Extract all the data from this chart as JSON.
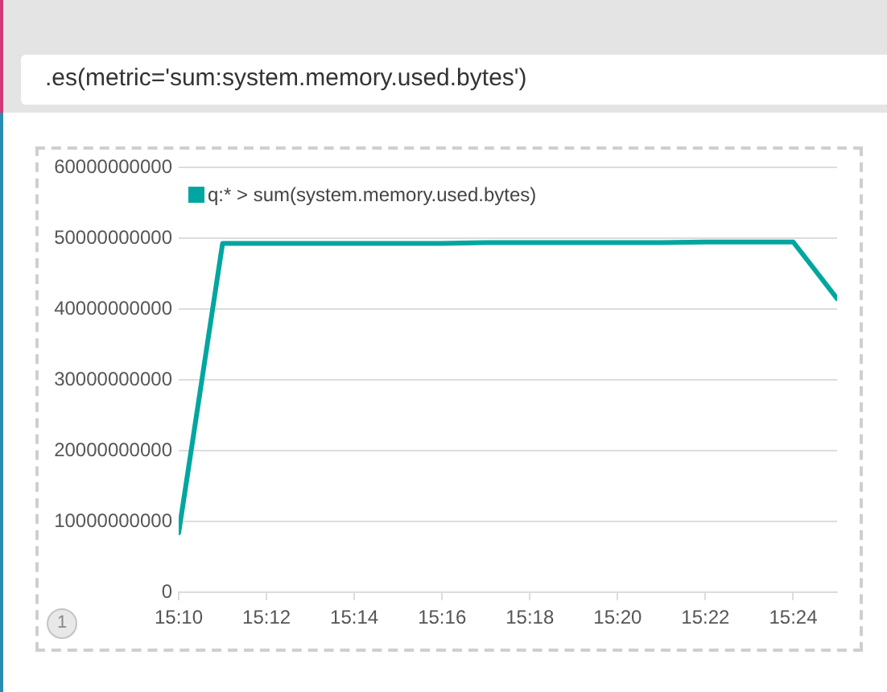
{
  "chart_data": {
    "type": "line",
    "title": ".es(metric='sum:system.memory.used.bytes')",
    "annotations": [
      "1"
    ],
    "x": [
      15.166667,
      15.183333,
      15.2,
      15.216667,
      15.233333,
      15.25,
      15.266667,
      15.283333,
      15.3,
      15.316667,
      15.333333,
      15.35,
      15.366667,
      15.383333,
      15.4,
      15.416667
    ],
    "series": [
      {
        "name": "q:* > sum(system.memory.used.bytes)",
        "color": "#00a69f",
        "values": [
          8400000000,
          49300000000,
          49300000000,
          49300000000,
          49300000000,
          49300000000,
          49300000000,
          49400000000,
          49400000000,
          49400000000,
          49400000000,
          49400000000,
          49500000000,
          49500000000,
          49500000000,
          41500000000
        ]
      }
    ],
    "xlim": [
      15.166667,
      15.416667
    ],
    "xticks": [
      {
        "value": 15.166667,
        "label": "15:10"
      },
      {
        "value": 15.2,
        "label": "15:12"
      },
      {
        "value": 15.233333,
        "label": "15:14"
      },
      {
        "value": 15.266667,
        "label": "15:16"
      },
      {
        "value": 15.3,
        "label": "15:18"
      },
      {
        "value": 15.333333,
        "label": "15:20"
      },
      {
        "value": 15.366667,
        "label": "15:22"
      },
      {
        "value": 15.4,
        "label": "15:24"
      }
    ],
    "ylim": [
      0,
      60000000000
    ],
    "yticks": [
      0,
      10000000000,
      20000000000,
      30000000000,
      40000000000,
      50000000000,
      60000000000
    ],
    "grid": "y",
    "legend": "top left"
  }
}
